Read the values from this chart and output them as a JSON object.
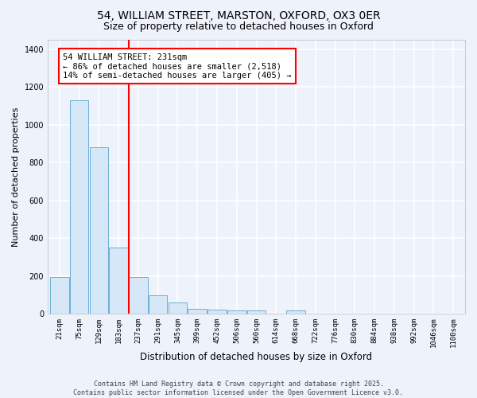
{
  "title1": "54, WILLIAM STREET, MARSTON, OXFORD, OX3 0ER",
  "title2": "Size of property relative to detached houses in Oxford",
  "xlabel": "Distribution of detached houses by size in Oxford",
  "ylabel": "Number of detached properties",
  "bin_labels": [
    "21sqm",
    "75sqm",
    "129sqm",
    "183sqm",
    "237sqm",
    "291sqm",
    "345sqm",
    "399sqm",
    "452sqm",
    "506sqm",
    "560sqm",
    "614sqm",
    "668sqm",
    "722sqm",
    "776sqm",
    "830sqm",
    "884sqm",
    "938sqm",
    "992sqm",
    "1046sqm",
    "1100sqm"
  ],
  "bar_heights": [
    195,
    1130,
    880,
    350,
    195,
    95,
    60,
    25,
    20,
    15,
    15,
    0,
    15,
    0,
    0,
    0,
    0,
    0,
    0,
    0,
    0
  ],
  "bar_color": "#d6e8f7",
  "bar_edge_color": "#6aaed6",
  "red_line_x": 3.5,
  "annotation_text": "54 WILLIAM STREET: 231sqm\n← 86% of detached houses are smaller (2,518)\n14% of semi-detached houses are larger (405) →",
  "annotation_box_color": "white",
  "annotation_box_edge": "red",
  "ylim": [
    0,
    1450
  ],
  "yticks": [
    0,
    200,
    400,
    600,
    800,
    1000,
    1200,
    1400
  ],
  "footer1": "Contains HM Land Registry data © Crown copyright and database right 2025.",
  "footer2": "Contains public sector information licensed under the Open Government Licence v3.0.",
  "bg_color": "#eef2fb",
  "grid_color": "white",
  "title_fontsize": 10,
  "subtitle_fontsize": 9,
  "annotation_fontsize": 7.5,
  "ylabel_fontsize": 8,
  "xlabel_fontsize": 8.5,
  "tick_fontsize": 6.5,
  "footer_fontsize": 6
}
